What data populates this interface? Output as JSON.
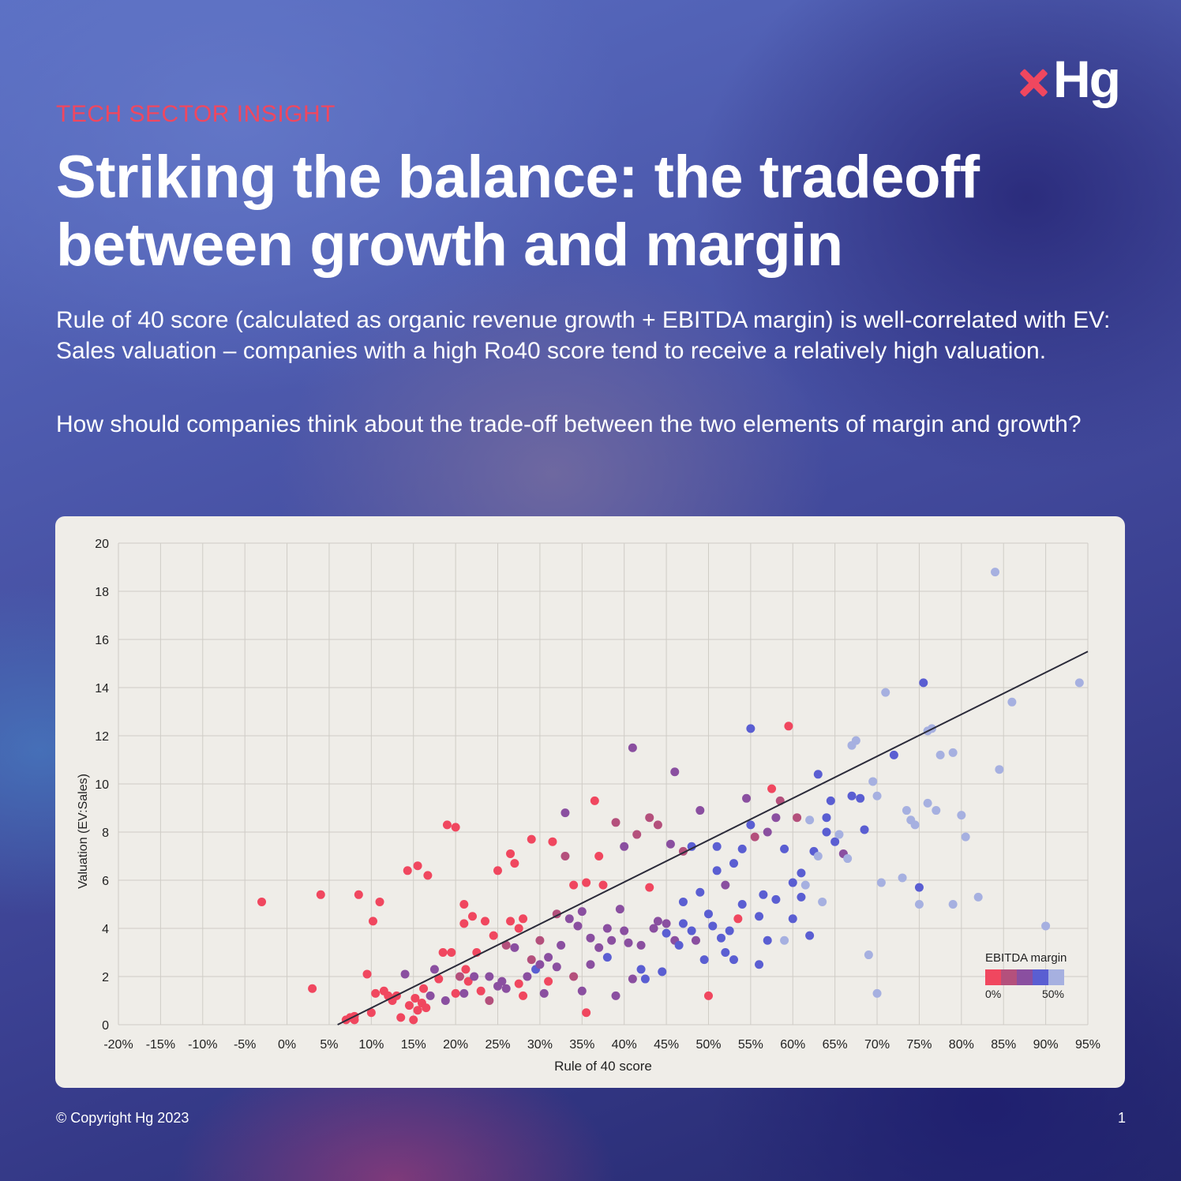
{
  "brand": {
    "logo_text": "Hg"
  },
  "header": {
    "eyebrow": "TECH SECTOR INSIGHT",
    "title": "Striking the balance: the tradeoff between growth and margin"
  },
  "body": {
    "paragraph1": "Rule of 40 score (calculated as organic revenue growth + EBITDA margin) is well-correlated with EV: Sales valuation – companies with a high Ro40 score tend to receive a relatively high valuation.",
    "paragraph2": "How should companies think about the trade-off between the two elements of margin and growth?"
  },
  "footer": {
    "copyright": "© Copyright Hg 2023",
    "page_number": "1"
  },
  "chart_data": {
    "type": "scatter",
    "xlabel": "Rule of 40 score",
    "ylabel": "Valuation (EV:Sales)",
    "xlim": [
      -0.2,
      0.95
    ],
    "ylim": [
      0,
      20
    ],
    "xticks": [
      -0.2,
      -0.15,
      -0.1,
      -0.05,
      0,
      0.05,
      0.1,
      0.15,
      0.2,
      0.25,
      0.3,
      0.35,
      0.4,
      0.45,
      0.5,
      0.55,
      0.6,
      0.65,
      0.7,
      0.75,
      0.8,
      0.85,
      0.9,
      0.95
    ],
    "xtick_labels": [
      "-20%",
      "-15%",
      "-10%",
      "-5%",
      "0%",
      "5%",
      "10%",
      "15%",
      "20%",
      "25%",
      "30%",
      "35%",
      "40%",
      "45%",
      "50%",
      "55%",
      "60%",
      "65%",
      "70%",
      "75%",
      "80%",
      "85%",
      "90%",
      "95%"
    ],
    "yticks": [
      0,
      2,
      4,
      6,
      8,
      10,
      12,
      14,
      16,
      18,
      20
    ],
    "ytick_labels": [
      "0",
      "2",
      "4",
      "6",
      "8",
      "10",
      "12",
      "14",
      "16",
      "18",
      "20"
    ],
    "grid": true,
    "trendline": {
      "x": [
        0.06,
        0.95
      ],
      "y": [
        0.0,
        15.5
      ],
      "color": "#2b2b3a"
    },
    "color_scale": {
      "title": "EBITDA margin",
      "min_label": "0%",
      "max_label": "50%",
      "stops": [
        "#f0475f",
        "#b4507c",
        "#8a4fa0",
        "#5a5ed2",
        "#a6b0e0"
      ],
      "placement": "bottom-right"
    },
    "points": [
      [
        -0.03,
        5.1,
        0
      ],
      [
        0.03,
        1.5,
        0
      ],
      [
        0.04,
        5.4,
        0
      ],
      [
        0.07,
        0.2,
        0
      ],
      [
        0.075,
        0.3,
        0
      ],
      [
        0.08,
        0.2,
        0
      ],
      [
        0.08,
        0.35,
        0
      ],
      [
        0.085,
        5.4,
        0
      ],
      [
        0.095,
        2.1,
        0
      ],
      [
        0.1,
        0.5,
        0
      ],
      [
        0.102,
        4.3,
        0
      ],
      [
        0.105,
        1.3,
        0
      ],
      [
        0.11,
        5.1,
        0
      ],
      [
        0.115,
        1.4,
        0
      ],
      [
        0.12,
        1.2,
        0
      ],
      [
        0.125,
        1.0,
        0
      ],
      [
        0.13,
        1.2,
        0
      ],
      [
        0.135,
        0.3,
        0
      ],
      [
        0.14,
        2.1,
        2
      ],
      [
        0.143,
        6.4,
        0
      ],
      [
        0.145,
        0.8,
        0
      ],
      [
        0.15,
        0.2,
        0
      ],
      [
        0.152,
        1.1,
        0
      ],
      [
        0.155,
        0.6,
        0
      ],
      [
        0.155,
        6.6,
        0
      ],
      [
        0.16,
        0.9,
        0
      ],
      [
        0.162,
        1.5,
        0
      ],
      [
        0.165,
        0.7,
        0
      ],
      [
        0.167,
        6.2,
        0
      ],
      [
        0.17,
        1.2,
        2
      ],
      [
        0.175,
        2.3,
        2
      ],
      [
        0.18,
        1.9,
        0
      ],
      [
        0.185,
        3.0,
        0
      ],
      [
        0.188,
        1.0,
        2
      ],
      [
        0.19,
        8.3,
        0
      ],
      [
        0.195,
        3.0,
        0
      ],
      [
        0.2,
        1.3,
        0
      ],
      [
        0.2,
        8.2,
        0
      ],
      [
        0.205,
        2.0,
        1
      ],
      [
        0.21,
        4.2,
        0
      ],
      [
        0.21,
        5.0,
        0
      ],
      [
        0.21,
        1.3,
        2
      ],
      [
        0.212,
        2.3,
        0
      ],
      [
        0.215,
        1.8,
        0
      ],
      [
        0.22,
        4.5,
        0
      ],
      [
        0.222,
        2.0,
        2
      ],
      [
        0.225,
        3.0,
        0
      ],
      [
        0.23,
        1.4,
        0
      ],
      [
        0.235,
        4.3,
        0
      ],
      [
        0.24,
        2.0,
        2
      ],
      [
        0.24,
        1.0,
        1
      ],
      [
        0.245,
        3.7,
        0
      ],
      [
        0.25,
        1.6,
        2
      ],
      [
        0.25,
        6.4,
        0
      ],
      [
        0.255,
        1.8,
        2
      ],
      [
        0.26,
        1.5,
        2
      ],
      [
        0.26,
        3.3,
        1
      ],
      [
        0.265,
        7.1,
        0
      ],
      [
        0.265,
        4.3,
        0
      ],
      [
        0.27,
        6.7,
        0
      ],
      [
        0.27,
        3.2,
        2
      ],
      [
        0.275,
        4.0,
        0
      ],
      [
        0.275,
        1.7,
        0
      ],
      [
        0.28,
        4.4,
        0
      ],
      [
        0.28,
        1.2,
        0
      ],
      [
        0.285,
        2.0,
        2
      ],
      [
        0.29,
        2.7,
        1
      ],
      [
        0.29,
        7.7,
        0
      ],
      [
        0.295,
        2.3,
        3
      ],
      [
        0.3,
        2.5,
        2
      ],
      [
        0.3,
        3.5,
        1
      ],
      [
        0.305,
        1.3,
        2
      ],
      [
        0.31,
        2.8,
        2
      ],
      [
        0.31,
        1.8,
        0
      ],
      [
        0.315,
        7.6,
        0
      ],
      [
        0.32,
        4.6,
        1
      ],
      [
        0.32,
        2.4,
        2
      ],
      [
        0.325,
        3.3,
        2
      ],
      [
        0.33,
        7.0,
        1
      ],
      [
        0.33,
        8.8,
        2
      ],
      [
        0.335,
        4.4,
        2
      ],
      [
        0.34,
        5.8,
        0
      ],
      [
        0.34,
        2.0,
        1
      ],
      [
        0.345,
        4.1,
        2
      ],
      [
        0.35,
        1.4,
        2
      ],
      [
        0.35,
        4.7,
        2
      ],
      [
        0.355,
        5.9,
        0
      ],
      [
        0.355,
        0.5,
        0
      ],
      [
        0.36,
        3.6,
        2
      ],
      [
        0.36,
        2.5,
        2
      ],
      [
        0.365,
        9.3,
        0
      ],
      [
        0.37,
        3.2,
        2
      ],
      [
        0.37,
        7.0,
        0
      ],
      [
        0.375,
        5.8,
        0
      ],
      [
        0.38,
        4.0,
        2
      ],
      [
        0.38,
        2.8,
        3
      ],
      [
        0.385,
        3.5,
        2
      ],
      [
        0.39,
        1.2,
        2
      ],
      [
        0.39,
        8.4,
        1
      ],
      [
        0.395,
        4.8,
        2
      ],
      [
        0.4,
        7.4,
        2
      ],
      [
        0.4,
        3.9,
        2
      ],
      [
        0.405,
        3.4,
        2
      ],
      [
        0.41,
        1.9,
        2
      ],
      [
        0.41,
        11.5,
        2
      ],
      [
        0.415,
        7.9,
        1
      ],
      [
        0.42,
        3.3,
        2
      ],
      [
        0.42,
        2.3,
        3
      ],
      [
        0.425,
        1.9,
        3
      ],
      [
        0.43,
        5.7,
        0
      ],
      [
        0.43,
        8.6,
        1
      ],
      [
        0.435,
        4.0,
        2
      ],
      [
        0.44,
        8.3,
        1
      ],
      [
        0.44,
        4.3,
        2
      ],
      [
        0.445,
        2.2,
        3
      ],
      [
        0.45,
        4.2,
        2
      ],
      [
        0.45,
        3.8,
        3
      ],
      [
        0.455,
        7.5,
        2
      ],
      [
        0.46,
        3.5,
        2
      ],
      [
        0.46,
        10.5,
        2
      ],
      [
        0.465,
        3.3,
        3
      ],
      [
        0.47,
        4.2,
        3
      ],
      [
        0.47,
        5.1,
        3
      ],
      [
        0.47,
        7.2,
        1
      ],
      [
        0.48,
        7.4,
        3
      ],
      [
        0.48,
        3.9,
        3
      ],
      [
        0.485,
        3.5,
        2
      ],
      [
        0.49,
        5.5,
        3
      ],
      [
        0.49,
        8.9,
        2
      ],
      [
        0.495,
        2.7,
        3
      ],
      [
        0.5,
        4.6,
        3
      ],
      [
        0.5,
        1.2,
        0
      ],
      [
        0.505,
        4.1,
        3
      ],
      [
        0.51,
        6.4,
        3
      ],
      [
        0.51,
        7.4,
        3
      ],
      [
        0.515,
        3.6,
        3
      ],
      [
        0.52,
        5.8,
        2
      ],
      [
        0.52,
        3.0,
        3
      ],
      [
        0.525,
        3.9,
        3
      ],
      [
        0.53,
        6.7,
        3
      ],
      [
        0.53,
        2.7,
        3
      ],
      [
        0.535,
        4.4,
        0
      ],
      [
        0.54,
        7.3,
        3
      ],
      [
        0.54,
        5.0,
        3
      ],
      [
        0.545,
        9.4,
        2
      ],
      [
        0.55,
        8.3,
        3
      ],
      [
        0.55,
        12.3,
        3
      ],
      [
        0.555,
        7.8,
        1
      ],
      [
        0.56,
        4.5,
        3
      ],
      [
        0.56,
        2.5,
        3
      ],
      [
        0.565,
        5.4,
        3
      ],
      [
        0.57,
        8.0,
        2
      ],
      [
        0.57,
        3.5,
        3
      ],
      [
        0.575,
        9.8,
        0
      ],
      [
        0.58,
        8.6,
        2
      ],
      [
        0.58,
        5.2,
        3
      ],
      [
        0.585,
        9.3,
        1
      ],
      [
        0.59,
        3.5,
        4
      ],
      [
        0.59,
        7.3,
        3
      ],
      [
        0.595,
        12.4,
        0
      ],
      [
        0.6,
        4.4,
        3
      ],
      [
        0.6,
        5.9,
        3
      ],
      [
        0.605,
        8.6,
        1
      ],
      [
        0.61,
        5.3,
        3
      ],
      [
        0.61,
        6.3,
        3
      ],
      [
        0.615,
        5.8,
        4
      ],
      [
        0.62,
        3.7,
        3
      ],
      [
        0.62,
        8.5,
        4
      ],
      [
        0.625,
        7.2,
        3
      ],
      [
        0.63,
        10.4,
        3
      ],
      [
        0.63,
        7.0,
        4
      ],
      [
        0.635,
        5.1,
        4
      ],
      [
        0.64,
        8.6,
        3
      ],
      [
        0.64,
        8.0,
        3
      ],
      [
        0.645,
        9.3,
        3
      ],
      [
        0.65,
        7.6,
        3
      ],
      [
        0.655,
        7.9,
        4
      ],
      [
        0.66,
        7.1,
        2
      ],
      [
        0.665,
        6.9,
        4
      ],
      [
        0.67,
        9.5,
        3
      ],
      [
        0.67,
        11.6,
        4
      ],
      [
        0.675,
        11.8,
        4
      ],
      [
        0.68,
        9.4,
        3
      ],
      [
        0.685,
        8.1,
        3
      ],
      [
        0.69,
        2.9,
        4
      ],
      [
        0.695,
        10.1,
        4
      ],
      [
        0.7,
        9.5,
        4
      ],
      [
        0.7,
        1.3,
        4
      ],
      [
        0.705,
        5.9,
        4
      ],
      [
        0.71,
        13.8,
        4
      ],
      [
        0.72,
        11.2,
        3
      ],
      [
        0.73,
        6.1,
        4
      ],
      [
        0.735,
        8.9,
        4
      ],
      [
        0.74,
        8.5,
        4
      ],
      [
        0.745,
        8.3,
        4
      ],
      [
        0.75,
        5.0,
        4
      ],
      [
        0.75,
        5.7,
        3
      ],
      [
        0.755,
        14.2,
        3
      ],
      [
        0.76,
        9.2,
        4
      ],
      [
        0.76,
        12.2,
        4
      ],
      [
        0.765,
        12.3,
        4
      ],
      [
        0.77,
        8.9,
        4
      ],
      [
        0.775,
        11.2,
        4
      ],
      [
        0.79,
        11.3,
        4
      ],
      [
        0.79,
        5.0,
        4
      ],
      [
        0.8,
        8.7,
        4
      ],
      [
        0.805,
        7.8,
        4
      ],
      [
        0.82,
        5.3,
        4
      ],
      [
        0.84,
        18.8,
        4
      ],
      [
        0.845,
        10.6,
        4
      ],
      [
        0.86,
        13.4,
        4
      ],
      [
        0.9,
        4.1,
        4
      ],
      [
        0.94,
        14.2,
        4
      ]
    ]
  }
}
